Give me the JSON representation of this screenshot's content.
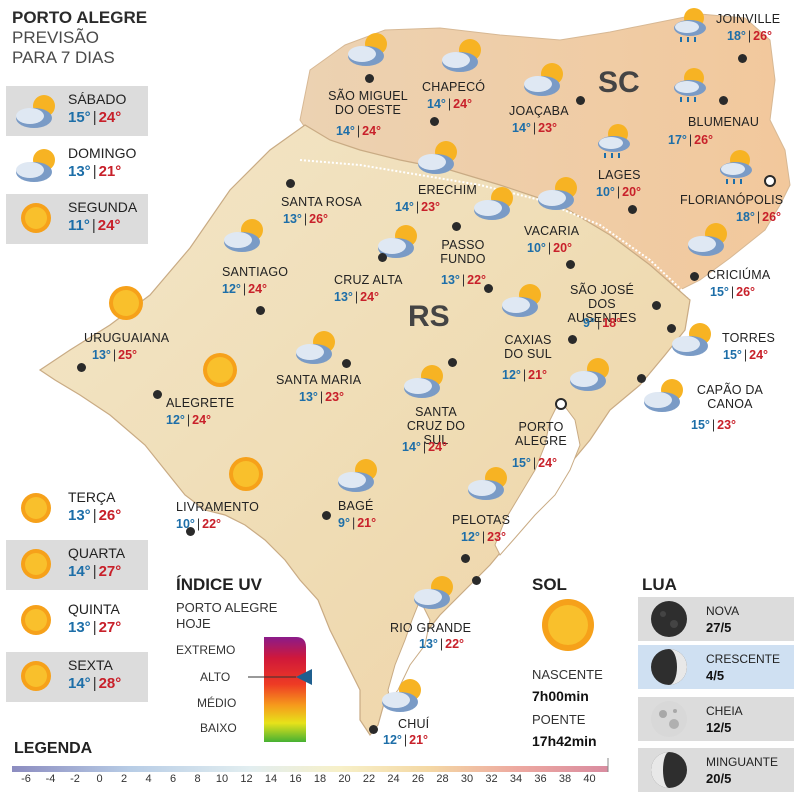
{
  "header": {
    "title": "PORTO ALEGRE",
    "line2": "PREVISÃO",
    "line3": "PARA 7 DIAS"
  },
  "forecast": [
    {
      "day": "SÁBADO",
      "min": "15°",
      "max": "24°",
      "icon": "partly-cloudy-icon"
    },
    {
      "day": "DOMINGO",
      "min": "13°",
      "max": "21°",
      "icon": "partly-cloudy-icon"
    },
    {
      "day": "SEGUNDA",
      "min": "11°",
      "max": "24°",
      "icon": "sun-icon"
    },
    {
      "day": "TERÇA",
      "min": "13°",
      "max": "26°",
      "icon": "sun-icon"
    },
    {
      "day": "QUARTA",
      "min": "14°",
      "max": "27°",
      "icon": "sun-icon"
    },
    {
      "day": "QUINTA",
      "min": "13°",
      "max": "27°",
      "icon": "sun-icon"
    },
    {
      "day": "SEXTA",
      "min": "14°",
      "max": "28°",
      "icon": "sun-icon"
    }
  ],
  "states": {
    "sc": "SC",
    "rs": "RS"
  },
  "cities": [
    {
      "name": "JOINVILLE",
      "min": "18°",
      "max": "26°",
      "icon": "rain-cloud-icon"
    },
    {
      "name": "BLUMENAU",
      "min": "17°",
      "max": "26°",
      "icon": "rain-cloud-icon"
    },
    {
      "name": "FLORIANÓPOLIS",
      "min": "18°",
      "max": "26°",
      "icon": "rain-cloud-icon"
    },
    {
      "name": "LAGES",
      "min": "10°",
      "max": "20°",
      "icon": "rain-cloud-icon"
    },
    {
      "name": "SÃO MIGUEL DO OESTE",
      "min": "14°",
      "max": "24°",
      "icon": "partly-cloudy-icon"
    },
    {
      "name": "CHAPECÓ",
      "min": "14°",
      "max": "24°",
      "icon": "partly-cloudy-icon"
    },
    {
      "name": "JOAÇABA",
      "min": "14°",
      "max": "23°",
      "icon": "partly-cloudy-icon"
    },
    {
      "name": "ERECHIM",
      "min": "14°",
      "max": "23°",
      "icon": "partly-cloudy-icon"
    },
    {
      "name": "SANTA ROSA",
      "min": "13°",
      "max": "26°",
      "icon": "partly-cloudy-icon"
    },
    {
      "name": "VACARIA",
      "min": "10°",
      "max": "20°",
      "icon": "partly-cloudy-icon"
    },
    {
      "name": "PASSO FUNDO",
      "min": "13°",
      "max": "22°",
      "icon": "partly-cloudy-icon"
    },
    {
      "name": "SANTIAGO",
      "min": "12°",
      "max": "24°",
      "icon": "partly-cloudy-icon"
    },
    {
      "name": "CRUZ ALTA",
      "min": "13°",
      "max": "24°",
      "icon": "partly-cloudy-icon"
    },
    {
      "name": "CRICIÚMA",
      "min": "15°",
      "max": "26°",
      "icon": "partly-cloudy-icon"
    },
    {
      "name": "SÃO JOSÉ DOS AUSENTES",
      "min": "9°",
      "max": "18°",
      "icon": "partly-cloudy-icon"
    },
    {
      "name": "URUGUAIANA",
      "min": "13°",
      "max": "25°",
      "icon": "sun-icon"
    },
    {
      "name": "TORRES",
      "min": "15°",
      "max": "24°",
      "icon": "partly-cloudy-icon"
    },
    {
      "name": "CAXIAS DO SUL",
      "min": "12°",
      "max": "21°",
      "icon": "partly-cloudy-icon"
    },
    {
      "name": "SANTA MARIA",
      "min": "13°",
      "max": "23°",
      "icon": "partly-cloudy-icon"
    },
    {
      "name": "ALEGRETE",
      "min": "12°",
      "max": "24°",
      "icon": "sun-icon"
    },
    {
      "name": "CAPÃO DA CANOA",
      "min": "15°",
      "max": "23°",
      "icon": "partly-cloudy-icon"
    },
    {
      "name": "SANTA CRUZ DO SUL",
      "min": "14°",
      "max": "24°",
      "icon": "partly-cloudy-icon"
    },
    {
      "name": "PORTO ALEGRE",
      "min": "15°",
      "max": "24°",
      "icon": "partly-cloudy-icon"
    },
    {
      "name": "LIVRAMENTO",
      "min": "10°",
      "max": "22°",
      "icon": "sun-icon"
    },
    {
      "name": "BAGÉ",
      "min": "9°",
      "max": "21°",
      "icon": "partly-cloudy-icon"
    },
    {
      "name": "PELOTAS",
      "min": "12°",
      "max": "23°",
      "icon": "partly-cloudy-icon"
    },
    {
      "name": "RIO GRANDE",
      "min": "13°",
      "max": "22°",
      "icon": "partly-cloudy-icon"
    },
    {
      "name": "CHUÍ",
      "min": "12°",
      "max": "21°",
      "icon": "partly-cloudy-icon"
    }
  ],
  "uv": {
    "title": "ÍNDICE UV",
    "sub1": "PORTO ALEGRE",
    "sub2": "HOJE",
    "levels": [
      "EXTREMO",
      "ALTO",
      "MÉDIO",
      "BAIXO"
    ],
    "current": "ALTO"
  },
  "sun": {
    "title": "SOL",
    "sunrise_label": "NASCENTE",
    "sunrise": "7h00min",
    "sunset_label": "POENTE",
    "sunset": "17h42min"
  },
  "moon": {
    "title": "LUA",
    "phases": [
      {
        "name": "NOVA",
        "date": "27/5",
        "icon": "new-moon-icon"
      },
      {
        "name": "CRESCENTE",
        "date": "4/5",
        "icon": "first-quarter-moon-icon"
      },
      {
        "name": "CHEIA",
        "date": "12/5",
        "icon": "full-moon-icon"
      },
      {
        "name": "MINGUANTE",
        "date": "20/5",
        "icon": "last-quarter-moon-icon"
      }
    ]
  },
  "legend": {
    "title": "LEGENDA",
    "ticks": [
      "-6",
      "-4",
      "-2",
      "0",
      "2",
      "4",
      "6",
      "8",
      "10",
      "12",
      "14",
      "16",
      "18",
      "20",
      "22",
      "24",
      "26",
      "28",
      "30",
      "32",
      "34",
      "36",
      "38",
      "40"
    ]
  },
  "colors": {
    "min_temp": "#1d6ea8",
    "max_temp": "#c8202a",
    "panel": "#dcdcdc",
    "selected_moon": "#cfe0f2"
  }
}
